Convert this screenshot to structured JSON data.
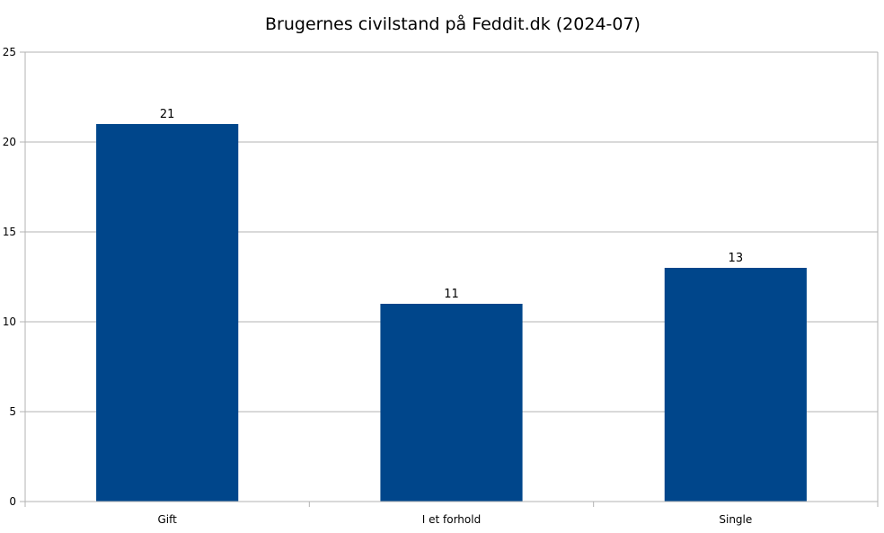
{
  "chart_data": {
    "type": "bar",
    "title": "Brugernes civilstand på Feddit.dk (2024-07)",
    "categories": [
      "Gift",
      "I et forhold",
      "Single"
    ],
    "values": [
      21,
      11,
      13
    ],
    "data_labels": [
      "21",
      "11",
      "13"
    ],
    "y_ticks": [
      "0",
      "5",
      "10",
      "15",
      "20",
      "25"
    ],
    "ylim": [
      0,
      25
    ],
    "grid": true,
    "legend": "none",
    "bar_color": "#00468b",
    "grid_color": "#b3b3b3",
    "axis_color": "#b3b3b3"
  }
}
